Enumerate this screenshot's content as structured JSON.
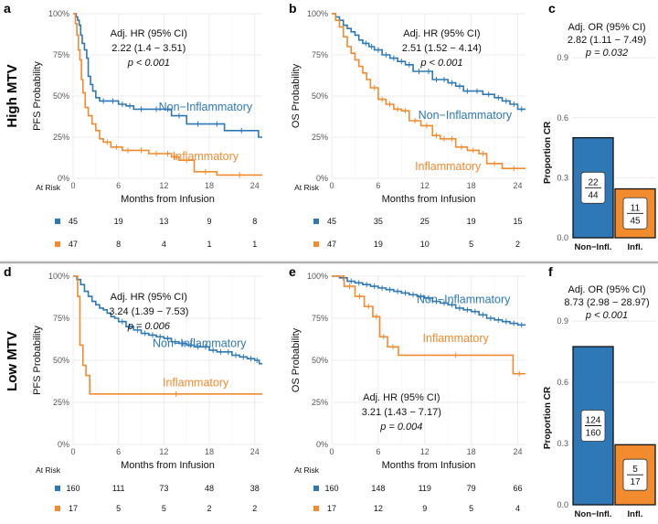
{
  "colors": {
    "non_inflammatory": "#2E78B5",
    "inflammatory": "#F28A2E",
    "grid": "#EBEBEB",
    "separator": "#B0B0B0"
  },
  "rows": [
    {
      "label": "High MTV"
    },
    {
      "label": "Low MTV"
    }
  ],
  "chart_data": [
    {
      "panel": "a",
      "type": "line",
      "ylabel": "PFS Probability",
      "xlabel": "Months from Infusion",
      "xlim": [
        0,
        25
      ],
      "ylim": [
        0,
        1
      ],
      "x_ticks": [
        0,
        6,
        12,
        18,
        24
      ],
      "y_ticks": [
        {
          "v": 0,
          "label": "0%"
        },
        {
          "v": 0.25,
          "label": "25%"
        },
        {
          "v": 0.5,
          "label": "50%"
        },
        {
          "v": 0.75,
          "label": "75%"
        },
        {
          "v": 1,
          "label": "100%"
        }
      ],
      "annotation": [
        "Adj. HR (95% CI)",
        "2.22 (1.4 − 3.51)",
        "p < 0.001"
      ],
      "annotation_pos": [
        10,
        0.86
      ],
      "series": [
        {
          "name": "Non−Inflammatory",
          "color_key": "non_inflammatory",
          "label_pos": [
            17.5,
            0.41
          ],
          "x": [
            0,
            0.4,
            0.6,
            0.8,
            1.0,
            1.2,
            1.5,
            1.8,
            2.0,
            2.3,
            2.6,
            3.0,
            3.5,
            4.5,
            6.0,
            7.0,
            8.0,
            10.0,
            12.0,
            13.0,
            15.0,
            18.0,
            20.0,
            24.5
          ],
          "y": [
            1.0,
            0.98,
            0.96,
            0.93,
            0.87,
            0.82,
            0.78,
            0.73,
            0.62,
            0.57,
            0.53,
            0.49,
            0.47,
            0.47,
            0.45,
            0.44,
            0.42,
            0.42,
            0.42,
            0.38,
            0.33,
            0.33,
            0.29,
            0.25
          ],
          "xmax": 25
        },
        {
          "name": "Inflammatory",
          "color_key": "inflammatory",
          "label_pos": [
            17.5,
            0.11
          ],
          "x": [
            0,
            0.3,
            0.5,
            0.7,
            0.9,
            1.1,
            1.3,
            1.6,
            2.0,
            2.5,
            3.0,
            3.5,
            4.0,
            5.0,
            6.5,
            8.0,
            10.0,
            12.0,
            13.0,
            14.0,
            16.0,
            19.0
          ],
          "y": [
            1.0,
            0.94,
            0.87,
            0.78,
            0.72,
            0.6,
            0.52,
            0.43,
            0.38,
            0.33,
            0.29,
            0.24,
            0.22,
            0.19,
            0.17,
            0.17,
            0.15,
            0.15,
            0.13,
            0.11,
            0.04,
            0.02
          ],
          "xmax": 25
        }
      ],
      "at_risk": {
        "title": "At Risk",
        "times": [
          0,
          6,
          12,
          18,
          24
        ],
        "rows": [
          {
            "color_key": "non_inflammatory",
            "values": [
              "45",
              "19",
              "13",
              "9",
              "8"
            ]
          },
          {
            "color_key": "inflammatory",
            "values": [
              "47",
              "8",
              "4",
              "1",
              "1"
            ]
          }
        ]
      }
    },
    {
      "panel": "b",
      "type": "line",
      "ylabel": "OS Probability",
      "xlabel": "Months from Infusion",
      "xlim": [
        0,
        25
      ],
      "ylim": [
        0,
        1
      ],
      "x_ticks": [
        0,
        6,
        12,
        18,
        24
      ],
      "y_ticks": [
        {
          "v": 0,
          "label": "0%"
        },
        {
          "v": 0.25,
          "label": "25%"
        },
        {
          "v": 0.5,
          "label": "50%"
        },
        {
          "v": 0.75,
          "label": "75%"
        },
        {
          "v": 1,
          "label": "100%"
        }
      ],
      "annotation": [
        "Adj. HR (95% CI)",
        "2.51 (1.52 − 4.14)",
        "p < 0.001"
      ],
      "annotation_pos": [
        14.2,
        0.86
      ],
      "series": [
        {
          "name": "Non−Inflammatory",
          "color_key": "non_inflammatory",
          "label_pos": [
            17.2,
            0.36
          ],
          "x": [
            0,
            0.5,
            1.0,
            1.5,
            2.0,
            2.5,
            3.0,
            3.5,
            4.0,
            4.8,
            5.5,
            6.5,
            7.5,
            8.5,
            9.5,
            10.5,
            12.0,
            13.0,
            14.0,
            15.0,
            16.0,
            17.0,
            18.0,
            19.5,
            21.0,
            22.0,
            23.0,
            24.0
          ],
          "y": [
            1.0,
            0.98,
            0.96,
            0.93,
            0.91,
            0.89,
            0.87,
            0.84,
            0.82,
            0.8,
            0.78,
            0.75,
            0.73,
            0.71,
            0.69,
            0.65,
            0.65,
            0.6,
            0.6,
            0.58,
            0.56,
            0.53,
            0.53,
            0.51,
            0.49,
            0.47,
            0.45,
            0.42
          ],
          "xmax": 25
        },
        {
          "name": "Inflammatory",
          "color_key": "inflammatory",
          "label_pos": [
            15.0,
            0.05
          ],
          "x": [
            0,
            0.5,
            1.0,
            1.5,
            2.0,
            2.5,
            3.0,
            3.5,
            4.0,
            4.5,
            5.0,
            6.0,
            7.0,
            8.0,
            9.0,
            10.0,
            11.5,
            13.0,
            14.0,
            15.0,
            16.0,
            17.5,
            19.0,
            20.0,
            22.0
          ],
          "y": [
            1.0,
            0.96,
            0.92,
            0.86,
            0.8,
            0.76,
            0.72,
            0.68,
            0.64,
            0.6,
            0.55,
            0.48,
            0.45,
            0.42,
            0.41,
            0.35,
            0.32,
            0.26,
            0.24,
            0.24,
            0.19,
            0.17,
            0.15,
            0.09,
            0.06
          ],
          "xmax": 25
        }
      ],
      "at_risk": {
        "title": "At Risk",
        "times": [
          0,
          6,
          12,
          18,
          24
        ],
        "rows": [
          {
            "color_key": "non_inflammatory",
            "values": [
              "45",
              "35",
              "25",
              "19",
              "15"
            ]
          },
          {
            "color_key": "inflammatory",
            "values": [
              "47",
              "19",
              "10",
              "5",
              "2"
            ]
          }
        ]
      }
    },
    {
      "panel": "c",
      "type": "bar",
      "ylabel": "Proportion CR",
      "ylim": [
        0,
        1.12
      ],
      "y_ticks": [
        {
          "v": 0,
          "label": "0.0"
        },
        {
          "v": 0.3,
          "label": "0.3"
        },
        {
          "v": 0.6,
          "label": "0.6"
        },
        {
          "v": 0.9,
          "label": "0.9"
        }
      ],
      "categories": [
        "Non−Infl.",
        "Infl."
      ],
      "values": [
        0.5,
        0.2444
      ],
      "numerators": [
        "22",
        "11"
      ],
      "denominators": [
        "44",
        "45"
      ],
      "color_keys": [
        "non_inflammatory",
        "inflammatory"
      ],
      "annotation": [
        "Adj. OR (95% CI)",
        "2.82 (1.11 − 7.49)",
        "p = 0.032"
      ]
    },
    {
      "panel": "d",
      "type": "line",
      "ylabel": "PFS Probability",
      "xlabel": "Months from Infusion",
      "xlim": [
        0,
        25
      ],
      "ylim": [
        0,
        1
      ],
      "x_ticks": [
        0,
        6,
        12,
        18,
        24
      ],
      "y_ticks": [
        {
          "v": 0,
          "label": "0%"
        },
        {
          "v": 0.25,
          "label": "25%"
        },
        {
          "v": 0.5,
          "label": "50%"
        },
        {
          "v": 0.75,
          "label": "75%"
        },
        {
          "v": 1,
          "label": "100%"
        }
      ],
      "annotation": [
        "Adj. HR (95% CI)",
        "3.24 (1.39 − 7.53)",
        "p = 0.006"
      ],
      "annotation_pos": [
        10,
        0.86
      ],
      "series": [
        {
          "name": "Non−Inflammatory",
          "color_key": "non_inflammatory",
          "label_pos": [
            16.7,
            0.58
          ],
          "x": [
            0,
            0.5,
            1.0,
            1.5,
            2.0,
            2.5,
            3.0,
            3.5,
            4.0,
            4.5,
            5.0,
            5.5,
            6.0,
            7.0,
            8.0,
            9.0,
            10.0,
            11.0,
            12.0,
            13.0,
            14.0,
            15.0,
            16.0,
            17.0,
            18.0,
            19.0,
            20.0,
            21.0,
            22.0,
            23.0,
            24.0,
            24.6
          ],
          "y": [
            1.0,
            0.98,
            0.95,
            0.91,
            0.88,
            0.85,
            0.83,
            0.81,
            0.8,
            0.78,
            0.76,
            0.75,
            0.73,
            0.7,
            0.68,
            0.66,
            0.65,
            0.64,
            0.63,
            0.61,
            0.6,
            0.59,
            0.58,
            0.58,
            0.56,
            0.55,
            0.55,
            0.53,
            0.52,
            0.51,
            0.5,
            0.48
          ],
          "xmax": 25
        },
        {
          "name": "Inflammatory",
          "color_key": "inflammatory",
          "label_pos": [
            16.2,
            0.345
          ],
          "x": [
            0,
            0.6,
            0.9,
            1.3,
            1.7,
            2.2
          ],
          "y": [
            1.0,
            0.88,
            0.59,
            0.47,
            0.41,
            0.3
          ],
          "xmax": 25
        }
      ],
      "at_risk": {
        "title": "At Risk",
        "times": [
          0,
          6,
          12,
          18,
          24
        ],
        "rows": [
          {
            "color_key": "non_inflammatory",
            "values": [
              "160",
              "111",
              "73",
              "48",
              "38"
            ]
          },
          {
            "color_key": "inflammatory",
            "values": [
              "17",
              "5",
              "5",
              "2",
              "2"
            ]
          }
        ]
      }
    },
    {
      "panel": "e",
      "type": "line",
      "ylabel": "OS Probability",
      "xlabel": "Months from Infusion",
      "xlim": [
        0,
        25
      ],
      "ylim": [
        0,
        1
      ],
      "x_ticks": [
        0,
        6,
        12,
        18,
        24
      ],
      "y_ticks": [
        {
          "v": 0,
          "label": "0%"
        },
        {
          "v": 0.25,
          "label": "25%"
        },
        {
          "v": 0.5,
          "label": "50%"
        },
        {
          "v": 0.75,
          "label": "75%"
        },
        {
          "v": 1,
          "label": "100%"
        }
      ],
      "annotation": [
        "Adj. HR (95% CI)",
        "3.21 (1.43 − 7.17)",
        "p = 0.004"
      ],
      "annotation_pos": [
        9.0,
        0.26
      ],
      "series": [
        {
          "name": "Non−Inflammatory",
          "color_key": "non_inflammatory",
          "label_pos": [
            17.0,
            0.84
          ],
          "x": [
            0,
            1.0,
            2.0,
            3.0,
            4.0,
            5.0,
            6.0,
            7.0,
            8.0,
            9.0,
            10.0,
            11.0,
            12.0,
            13.0,
            14.0,
            15.0,
            16.0,
            17.0,
            18.0,
            19.0,
            20.0,
            21.0,
            22.0,
            23.0,
            24.0
          ],
          "y": [
            1.0,
            0.99,
            0.97,
            0.96,
            0.95,
            0.94,
            0.93,
            0.92,
            0.91,
            0.9,
            0.89,
            0.88,
            0.87,
            0.85,
            0.84,
            0.83,
            0.81,
            0.8,
            0.79,
            0.77,
            0.75,
            0.74,
            0.73,
            0.72,
            0.71
          ],
          "xmax": 25
        },
        {
          "name": "Inflammatory",
          "color_key": "inflammatory",
          "label_pos": [
            16.0,
            0.61
          ],
          "x": [
            0,
            1.6,
            3.0,
            4.2,
            5.3,
            6.2,
            7.2,
            8.6,
            23.4
          ],
          "y": [
            1.0,
            0.94,
            0.88,
            0.82,
            0.76,
            0.64,
            0.58,
            0.53,
            0.42
          ],
          "xmax": 25
        }
      ],
      "at_risk": {
        "title": "At Risk",
        "times": [
          0,
          6,
          12,
          18,
          24
        ],
        "rows": [
          {
            "color_key": "non_inflammatory",
            "values": [
              "160",
              "148",
              "119",
              "79",
              "66"
            ]
          },
          {
            "color_key": "inflammatory",
            "values": [
              "17",
              "12",
              "9",
              "5",
              "4"
            ]
          }
        ]
      }
    },
    {
      "panel": "f",
      "type": "bar",
      "ylabel": "Proportion CR",
      "ylim": [
        0,
        1.12
      ],
      "y_ticks": [
        {
          "v": 0,
          "label": "0.0"
        },
        {
          "v": 0.3,
          "label": "0.3"
        },
        {
          "v": 0.6,
          "label": "0.6"
        },
        {
          "v": 0.9,
          "label": "0.9"
        }
      ],
      "categories": [
        "Non−Infl.",
        "Infl."
      ],
      "values": [
        0.775,
        0.294
      ],
      "numerators": [
        "124",
        "5"
      ],
      "denominators": [
        "160",
        "17"
      ],
      "color_keys": [
        "non_inflammatory",
        "inflammatory"
      ],
      "annotation": [
        "Adj. OR (95% CI)",
        "8.73 (2.98 − 28.97)",
        "p < 0.001"
      ]
    }
  ]
}
